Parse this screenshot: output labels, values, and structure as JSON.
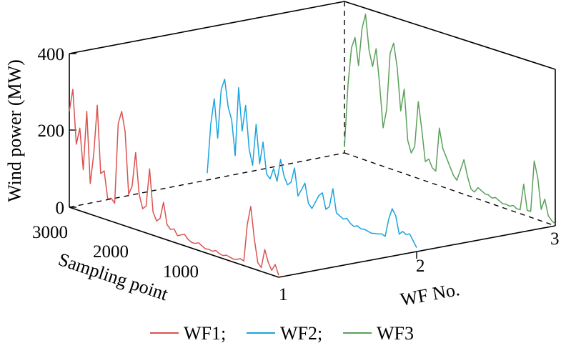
{
  "chart_data": {
    "type": "line",
    "view": "3d-waterfall",
    "zlabel": "Wind power (MW)",
    "xlabel": "Sampling point",
    "ylabel": "WF No.",
    "zlim": [
      0,
      400
    ],
    "xlim": [
      0,
      3000
    ],
    "ylim": [
      1,
      3
    ],
    "z_ticks": [
      "0",
      "200",
      "400"
    ],
    "x_ticks": [
      "1000",
      "2000",
      "3000"
    ],
    "y_ticks": [
      "1",
      "2",
      "3"
    ],
    "grid": false,
    "legend_position": "bottom-center",
    "x": [
      3000,
      2950,
      2900,
      2850,
      2800,
      2750,
      2700,
      2650,
      2600,
      2550,
      2500,
      2450,
      2400,
      2350,
      2300,
      2250,
      2200,
      2150,
      2100,
      2050,
      2000,
      1950,
      1900,
      1850,
      1800,
      1750,
      1700,
      1650,
      1600,
      1550,
      1500,
      1450,
      1400,
      1350,
      1300,
      1250,
      1200,
      1150,
      1100,
      1050,
      1000,
      950,
      900,
      850,
      800,
      750,
      700,
      650,
      600,
      550,
      500,
      450,
      400,
      350,
      300,
      250,
      200,
      150,
      100,
      50,
      0
    ],
    "series": [
      {
        "name": "WF1;",
        "color": "#d9534f",
        "wf": 1,
        "values": [
          250,
          310,
          170,
          215,
          110,
          265,
          80,
          160,
          290,
          115,
          125,
          55,
          60,
          50,
          260,
          295,
          245,
          85,
          110,
          200,
          95,
          60,
          70,
          170,
          60,
          40,
          50,
          95,
          40,
          30,
          35,
          20,
          25,
          30,
          20,
          15,
          15,
          20,
          15,
          10,
          12,
          10,
          15,
          10,
          8,
          12,
          10,
          8,
          10,
          15,
          12,
          110,
          160,
          80,
          20,
          10,
          60,
          30,
          12,
          30,
          5
        ]
      },
      {
        "name": "WF2;",
        "color": "#1aa3e0",
        "wf": 2,
        "values": [
          20,
          150,
          220,
          120,
          250,
          280,
          210,
          180,
          90,
          270,
          160,
          230,
          120,
          80,
          190,
          90,
          150,
          70,
          60,
          90,
          60,
          120,
          80,
          60,
          70,
          110,
          40,
          60,
          80,
          30,
          20,
          40,
          60,
          70,
          30,
          40,
          90,
          30,
          25,
          20,
          25,
          15,
          10,
          15,
          10,
          12,
          10,
          8,
          10,
          12,
          15,
          12,
          60,
          90,
          75,
          30,
          40,
          35,
          40,
          25,
          10
        ]
      },
      {
        "name": "WF3",
        "color": "#5aa05a",
        "wf": 3,
        "values": [
          15,
          180,
          280,
          310,
          240,
          340,
          380,
          290,
          250,
          300,
          210,
          100,
          150,
          300,
          330,
          270,
          160,
          220,
          90,
          60,
          80,
          200,
          130,
          50,
          60,
          40,
          35,
          150,
          100,
          80,
          60,
          40,
          30,
          60,
          90,
          50,
          20,
          15,
          30,
          25,
          20,
          20,
          15,
          20,
          15,
          10,
          12,
          10,
          15,
          10,
          10,
          80,
          15,
          15,
          150,
          110,
          30,
          60,
          20,
          10,
          5
        ]
      }
    ]
  }
}
